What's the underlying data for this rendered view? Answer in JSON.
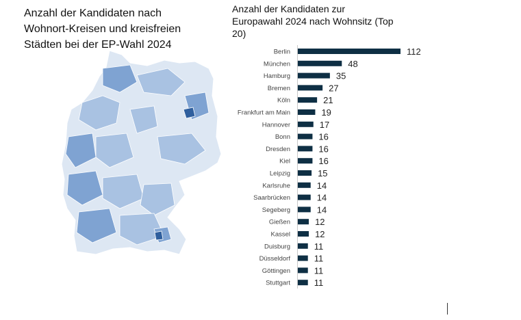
{
  "map": {
    "title": "Anzahl der Kandidaten nach Wohnort-Kreisen und kreisfreien Städten bei der EP-Wahl 2024",
    "colors": {
      "low": "#dde7f3",
      "mid": "#a9c2e2",
      "high": "#7fa3d2",
      "max": "#2f5f9e"
    }
  },
  "chart_data": {
    "type": "bar",
    "orientation": "horizontal",
    "title": "Anzahl der Kandidaten zur Europawahl 2024 nach Wohnsitz (Top 20)",
    "categories": [
      "Berlin",
      "München",
      "Hamburg",
      "Bremen",
      "Köln",
      "Frankfurt am Main",
      "Hannover",
      "Bonn",
      "Dresden",
      "Kiel",
      "Leipzig",
      "Karlsruhe",
      "Saarbrücken",
      "Segeberg",
      "Gießen",
      "Kassel",
      "Duisburg",
      "Düsseldorf",
      "Göttingen",
      "Stuttgart"
    ],
    "values": [
      112,
      48,
      35,
      27,
      21,
      19,
      17,
      16,
      16,
      16,
      15,
      14,
      14,
      14,
      12,
      12,
      11,
      11,
      11,
      11
    ],
    "bar_color": "#0e2f44",
    "data_labels": true,
    "grid": false
  }
}
